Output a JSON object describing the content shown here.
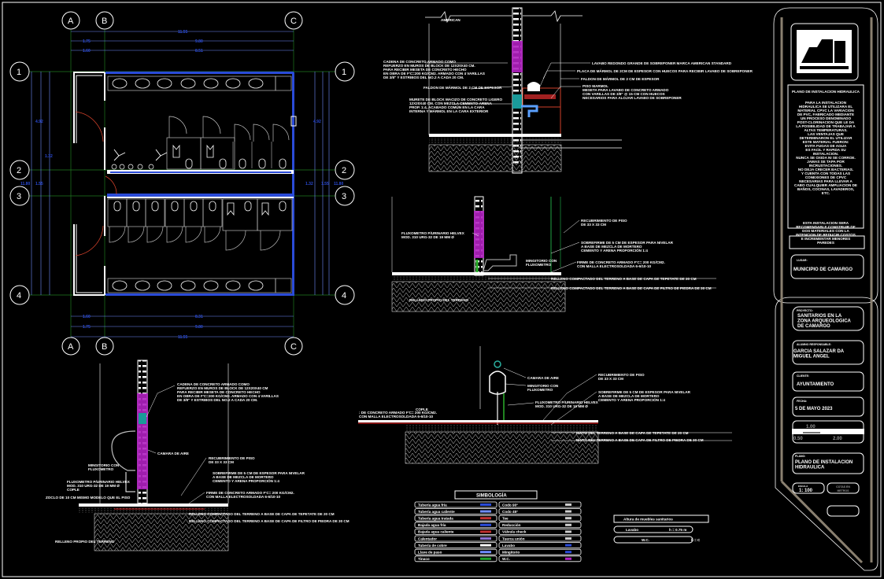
{
  "plan": {
    "grid_cols": [
      "A",
      "B",
      "C"
    ],
    "grid_rows": [
      "1",
      "2",
      "3",
      "4"
    ],
    "dims_top": [
      "11.55",
      "1.75",
      "9.80",
      "1.60",
      "8.51"
    ],
    "dims_bottom": [
      "11.55",
      "1.75",
      "9.80",
      "1.60",
      "8.31"
    ],
    "dims_left": [
      "11.80",
      "4.92",
      "1.55",
      "1.32"
    ],
    "dims_right": [
      "11.80",
      "4.92",
      "1.55",
      "1.32"
    ]
  },
  "section_lavabo": {
    "label_top": "AMERICAN",
    "notes_left": [
      [
        "CADENA DE CONCRETO ARMADO COMO",
        "REFUERZO EN MUROS DE BLOCK DE 12X20X40 CM.",
        "PARA RECIBIR MESETA DE CONCRETO HECHO",
        "EN OBRA DE F'C=200 KG/CM2. ARMADO CON 4 VARILLAS",
        "DE 3/8\" Y ESTRIBOS DEL NO.2 A CADA 20 CM."
      ],
      [
        "FALDON DE MÁRMOL DE 2 CM DE ESPESOR"
      ],
      [
        "MURETE DE BLOCK MACIZO DE CONCRETO LIGERO",
        "12X20X40 CM. CON MEZCLA CEMENTO-ARENA",
        "PROP. 1:4, ACABADO COMÚN EN LA CARA",
        "INTERNA Y MÁRMOL EN LA CARA EXTERIOR"
      ]
    ],
    "notes_right": [
      [
        "LAVABO REDONDO GRANDE DE SOBREPONER MARCA AMERICAN STANDARD"
      ],
      [
        "PLACA DE MÁRMOL DE 2CM DE ESPESOR CON HUECOS PARA RECIBIR LAVABO DE SOBREPONER"
      ],
      [
        "FALDON DE MÁRMOL DE 2 CM DE ESPESOR"
      ],
      [
        "PISO MARMOL",
        "MESETA PARA LAVABO DE CONCRETO ARMADO",
        "CON VARILLAS DE 3/8\" @ 15 CM CON HUECOS",
        "NECESARIOS PARA ALOJAR LAVABO DE SOBREPONER"
      ]
    ]
  },
  "section_wc": {
    "notes": [
      [
        "FLUXOMETRO P/URINARIO HELVEX",
        "MOD. 310 URG-32 DE 19 MM Ø"
      ],
      [
        "RECUBRIMIENTO DE PISO",
        "DE 33 X 33 CM"
      ],
      [
        "SOBREFIRME DE 5 CM DE ESPESOR PARA NIVELAR",
        "A BASE DE MEZCLA DE MORTERO",
        "CEMENTO Y ARENA PROPORCIÓN 1:4"
      ],
      [
        "MINGITORIO CON",
        "FLUXOMETRO"
      ],
      [
        "FIRME DE CONCRETO ARMADO F'C= 200 KG/CM2.",
        "CON MALLA ELECTROSOLDADA 6-6/10-10"
      ],
      [
        "RELLENO COMPACTADO DEL TERRENO A BASE DE CAPA DE TEPETATE DE 20 CM"
      ],
      [
        "RELLENO COMPACTADO DEL TERRENO A BASE DE CAPA DE FILTRO DE PIEDRA DE 30 CM"
      ],
      [
        "RELLENO PROPIO DEL TERRENO"
      ]
    ]
  },
  "section_mingitorio_left": {
    "notes": [
      [
        "CADENA DE CONCRETO ARMADO COMO",
        "REFUERZO EN MUROS DE BLOCK DE 12X20X40 CM",
        "PARA RECIBIR MESETA DE CONCRETO HECHO",
        "EN OBRA DE F'C=200 KG/CM2. ARMADO CON 4 VARILLAS",
        "DE 3/8\" Y ESTRIBOS DEL NO.2 A CADA 20 CM."
      ],
      [
        "CAMARA DE AIRE"
      ],
      [
        "MINGITORIO CON",
        "FLUXOMETRO"
      ],
      [
        "FLUXOMETRO P/URINARIO HELVEX",
        "MOD. 310 URG-32 DE 19 MM Ø",
        "COPLE"
      ],
      [
        "ZOCLO DE 10 CM MISMO MODELO QUE EL PISO"
      ],
      [
        "RECUBRIMIENTO DE PISO",
        "DE 33 X 33 CM"
      ],
      [
        "SOBREFIRME DE 5 CM DE ESPESOR PARA NIVELAR",
        "A BASE DE MEZCLA DE MORTERO",
        "CEMENTO Y ARENA PROPORCIÓN 1:4"
      ],
      [
        "FIRME DE CONCRETO ARMADO F'C= 200 KG/CM2.",
        "CON MALLA ELECTROSOLDADA 6-6/10-10"
      ],
      [
        "RELLENO COMPACTADO DEL TERRENO A BASE DE CAPA DE TEPETATE DE 20 CM"
      ],
      [
        "RELLENO COMPACTADO DEL TERRENO A BASE DE CAPA DE FILTRO DE PIEDRA DE 30 CM"
      ],
      [
        "RELLENO PROPIO DEL TERRENO"
      ]
    ]
  },
  "section_mingitorio_right": {
    "notes": [
      [
        "CAMARA DE AIRE"
      ],
      [
        "MINGITORIO CON",
        "FLUXOMETRO"
      ],
      [
        "RECUBRIMIENTO DE PISO",
        "DE 33 X 33 CM"
      ],
      [
        "SOBREFIRME DE 5 CM DE ESPESOR PARA NIVELAR",
        "A BASE DE MEZCLA DE MORTERO",
        "CEMENTO Y ARENA PROPORCIÓN 1:4"
      ],
      [
        "FLUXOMETRO P/URINARIO HELVEX",
        "MOD. 310 URG-32 DE 19 MM Ø"
      ],
      [
        "COPLE"
      ],
      [
        ": DE CONCRETO ARMADO F'C= 200 KG/CM2.",
        "CON MALLA ELECTROSOLDADA 6-6/10-10"
      ],
      [
        "IENTO DEL TERRENO A BASE DE CAPA DE TEPETATE DE 20 CM"
      ],
      [
        "IENTO DEL TERRENO A BASE DE CAPA DE FILTRO DE PIEDRA DE 30 CM"
      ]
    ]
  },
  "legend": {
    "title": "SIMBOLOGÍA",
    "left_items": [
      "Tubería agua fría",
      "Tubería agua caliente",
      "Tubería agua tratada",
      "Bajada agua fría",
      "Bajada agua caliente",
      "Calentador",
      "Tubería de cobre",
      "Llave de paso",
      "Tinaco"
    ],
    "right_items": [
      "Codo 90°",
      "Codo 45°",
      "Tee",
      "Reducción",
      "Válvula check",
      "Tuerca unión",
      "Lavabo",
      "Mingitorio",
      "W.C."
    ],
    "colors": {
      "blue": "#2a4bd8",
      "light_blue": "#6f8cff",
      "red": "#c03030",
      "green": "#1fa02a",
      "magenta": "#b020c0"
    }
  },
  "heights_table": {
    "title": "Altura de muebles sanitarios",
    "rows": [
      {
        "item": "Lavabo",
        "value": "h = 0.75 m"
      },
      {
        "item": "W.C.",
        "value": "h = C"
      }
    ]
  },
  "title_block": {
    "notes_title": "PLANO DE INSTALACION HIDRAULICA",
    "notes": [
      "PARA LA INSTALACION",
      "HIDRAULICA SE UTILIZARA EL",
      "MATERIAL CPVC LA VARIACION",
      "DE PVC, FABRICADO MEDIANTE",
      "UN PROCESO DENOMINADO",
      "POST-CLORINACION QUE LE DA",
      "LA POSIBILIDAD DE TRABAJAR A",
      "ALTAS TEMPERATURAS.",
      "LAS VENTAJAS QUE",
      "DETERMINARON EL UTILIZAR",
      "ESTE MATERIAL FUERON:",
      "EVITA FUGAS DE AGUA",
      "ES FACIL Y RAPIDA SU",
      "INSTALACION.",
      "NUNCA SE OXIDA NI SE CORROE.",
      "JAMAS SE TAPA POR",
      "INCRUSTACIONES.",
      "NO DEJA CRECER BACTERIAS.",
      "",
      "Y CUENTA CON TODAS LAS",
      "CONEXIONES DE CPVC",
      "NECESARIAS PARA LLEVAR A",
      "CABO CUALQUIER AMPLIACION DE",
      "BAÑOS, COCINAS, LAVADEROS,",
      "ETC."
    ],
    "notes_footer": [
      "ESTA INSTALACION SERA",
      "RECOMENDABLE CONSTRUIR DE",
      "DOS MATERIALES CON LA",
      "INTENCION DE REDUCIR COSTOS",
      "E INCREMENTAR MENORES",
      "PAREDES"
    ],
    "location_label": "LUGAR:",
    "location": "MUNICIPIO DE CAMARGO",
    "project_label": "PROYECTO:",
    "project": [
      "SANITARIOS EN LA",
      "ZONA ARQUEOLOGICA",
      "DE CAMARGO"
    ],
    "author_label": "ALUMNO RESPONSABLE:",
    "author": [
      "GARCIA SALAZAR DA",
      "MIGUEL ANGEL"
    ],
    "client_label": "CLIENTE:",
    "client": "AYUNTAMIENTO",
    "date_label": "FECHA:",
    "date": "5 DE MAYO 2023",
    "scale_bar": [
      "1.00",
      "0.50",
      "2.00"
    ],
    "sheet_label": "PLANO:",
    "sheet": [
      "PLANO DE INSTALACION",
      "HIDRAULICA"
    ],
    "scale_label": "ESCALA",
    "scale": "1: 100",
    "units": [
      "COTAS EN",
      "METROS"
    ]
  }
}
